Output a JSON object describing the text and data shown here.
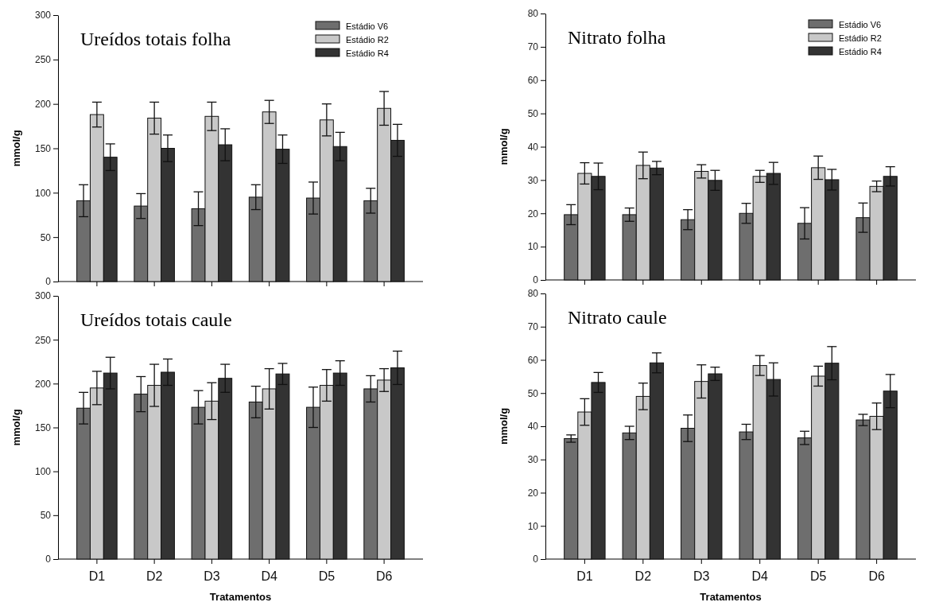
{
  "chart_data": [
    {
      "type": "bar",
      "title": "Ureídos totais folha",
      "ylabel": "mmol/g",
      "categories": [
        null,
        null,
        null,
        null,
        null,
        null
      ],
      "ylim": [
        0,
        300
      ],
      "yticks": [
        0,
        50,
        100,
        150,
        200,
        250,
        300
      ],
      "tick_labels": "y",
      "legend": "top right",
      "grid": false,
      "series": [
        {
          "name": "Estádio V6",
          "color": "#6e6e6e",
          "values": [
            91,
            85,
            82,
            95,
            94,
            91
          ],
          "errors": [
            18,
            14,
            19,
            14,
            18,
            14
          ]
        },
        {
          "name": "Estádio R2",
          "color": "#c8c8c8",
          "values": [
            188,
            184,
            186,
            191,
            182,
            195
          ],
          "errors": [
            14,
            18,
            16,
            13,
            18,
            19
          ]
        },
        {
          "name": "Estádio R4",
          "color": "#333333",
          "values": [
            140,
            150,
            154,
            149,
            152,
            159
          ],
          "errors": [
            15,
            15,
            18,
            16,
            16,
            18
          ]
        }
      ]
    },
    {
      "type": "bar",
      "title": "Nitrato folha",
      "ylabel": "mmol/g",
      "categories": [
        null,
        null,
        null,
        null,
        null,
        null
      ],
      "ylim": [
        0,
        80
      ],
      "yticks": [
        0,
        10,
        20,
        30,
        40,
        50,
        60,
        70,
        80
      ],
      "tick_labels": "y",
      "legend": "top right",
      "grid": false,
      "series": [
        {
          "name": "Estádio V6",
          "color": "#6e6e6e",
          "values": [
            19.6,
            19.6,
            18.1,
            20,
            17,
            18.7
          ],
          "errors": [
            3,
            2,
            3,
            3,
            4.7,
            4.4
          ]
        },
        {
          "name": "Estádio R2",
          "color": "#c8c8c8",
          "values": [
            32,
            34.4,
            32.6,
            31.1,
            33.7,
            28.1
          ],
          "errors": [
            3.2,
            4,
            2,
            1.8,
            3.5,
            1.6
          ]
        },
        {
          "name": "Estádio R4",
          "color": "#333333",
          "values": [
            31.1,
            33.6,
            29.9,
            32,
            30.1,
            31.1
          ],
          "errors": [
            4,
            2,
            3,
            3.3,
            3.1,
            2.9
          ]
        }
      ]
    },
    {
      "type": "bar",
      "title": "Ureídos totais caule",
      "ylabel": "mmol/g",
      "xlabel": "Tratamentos",
      "categories": [
        "D1",
        "D2",
        "D3",
        "D4",
        "D5",
        "D6"
      ],
      "ylim": [
        0,
        300
      ],
      "yticks": [
        0,
        50,
        100,
        150,
        200,
        250,
        300
      ],
      "grid": false,
      "series": [
        {
          "color": "#6e6e6e",
          "values": [
            172,
            188,
            173,
            179,
            173,
            194
          ],
          "errors": [
            18,
            20,
            19,
            18,
            23,
            15
          ]
        },
        {
          "color": "#c8c8c8",
          "values": [
            195,
            198,
            180,
            194,
            198,
            204
          ],
          "errors": [
            19,
            24,
            21,
            23,
            18,
            13
          ]
        },
        {
          "color": "#333333",
          "values": [
            212,
            213,
            206,
            211,
            212,
            218
          ],
          "errors": [
            18,
            15,
            16,
            12,
            14,
            19
          ]
        }
      ]
    },
    {
      "type": "bar",
      "title": "Nitrato caule",
      "ylabel": "mmol/g",
      "xlabel": "Tratamentos",
      "categories": [
        "D1",
        "D2",
        "D3",
        "D4",
        "D5",
        "D6"
      ],
      "ylim": [
        0,
        80
      ],
      "yticks": [
        0,
        10,
        20,
        30,
        40,
        50,
        60,
        70,
        80
      ],
      "grid": false,
      "series": [
        {
          "color": "#6e6e6e",
          "values": [
            36.3,
            38,
            39.4,
            38.3,
            36.5,
            41.9
          ],
          "errors": [
            1.1,
            2,
            4,
            2.3,
            2,
            1.7
          ]
        },
        {
          "color": "#c8c8c8",
          "values": [
            44.3,
            49,
            53.5,
            58.3,
            55.1,
            43
          ],
          "errors": [
            4,
            4,
            5,
            3,
            3,
            4
          ]
        },
        {
          "color": "#333333",
          "values": [
            53.2,
            59.1,
            55.8,
            54.1,
            59,
            50.6
          ],
          "errors": [
            3,
            3,
            2,
            5,
            5,
            5
          ]
        }
      ]
    }
  ]
}
